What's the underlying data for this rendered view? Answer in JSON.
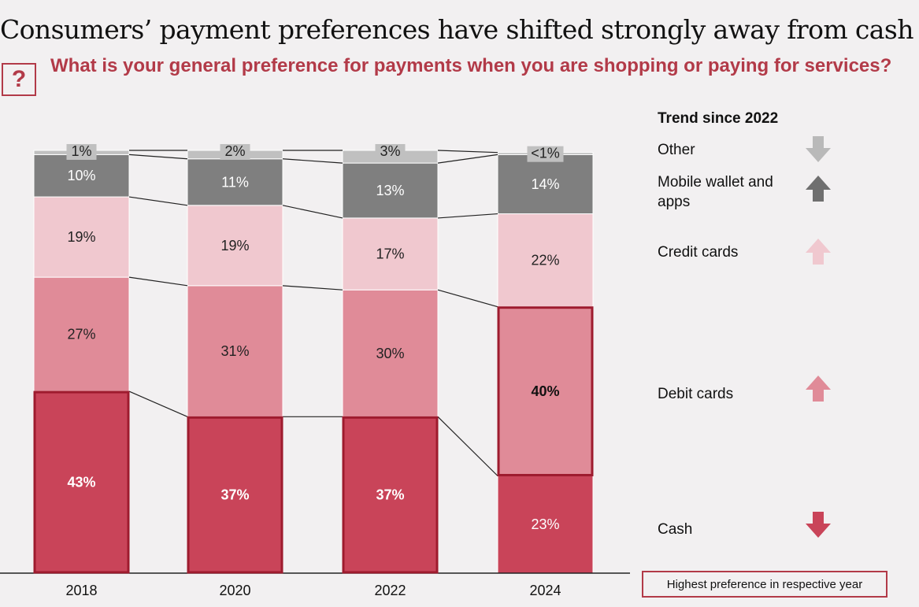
{
  "title": "Consumers’ payment preferences have shifted strongly away from cash",
  "question_icon": "?",
  "question": "What is your general preference for payments when you are shopping or paying for services?",
  "legend": {
    "title": "Trend since 2022",
    "items": [
      {
        "label": "Other",
        "trend": "down",
        "color": "#b9b9b9",
        "icon": "arrow-down-icon"
      },
      {
        "label": "Mobile wallet and apps",
        "trend": "up",
        "color": "#6f6f6f",
        "icon": "arrow-up-icon"
      },
      {
        "label": "Credit cards",
        "trend": "up",
        "color": "#f0c8cf",
        "icon": "arrow-up-icon"
      },
      {
        "label": "Debit cards",
        "trend": "up",
        "color": "#e08b98",
        "icon": "arrow-up-icon"
      },
      {
        "label": "Cash",
        "trend": "down",
        "color": "#c94459",
        "icon": "arrow-down-icon"
      }
    ]
  },
  "note": "Highest preference in respective year",
  "chart_data": {
    "type": "bar",
    "stacked": true,
    "categories": [
      "2018",
      "2020",
      "2022",
      "2024"
    ],
    "series": [
      {
        "name": "Cash",
        "values": [
          43,
          37,
          37,
          23
        ],
        "labels": [
          "43%",
          "37%",
          "37%",
          "23%"
        ],
        "color": "#c94459",
        "text_color": "#ffffff"
      },
      {
        "name": "Debit cards",
        "values": [
          27,
          31,
          30,
          40
        ],
        "labels": [
          "27%",
          "31%",
          "30%",
          "40%"
        ],
        "color": "#e08b98",
        "text_color": "#222222"
      },
      {
        "name": "Credit cards",
        "values": [
          19,
          19,
          17,
          22
        ],
        "labels": [
          "19%",
          "19%",
          "17%",
          "22%"
        ],
        "color": "#f0c8cf",
        "text_color": "#222222"
      },
      {
        "name": "Mobile wallet and apps",
        "values": [
          10,
          11,
          13,
          14
        ],
        "labels": [
          "10%",
          "11%",
          "13%",
          "14%"
        ],
        "color": "#7f7f7f",
        "text_color": "#ffffff"
      },
      {
        "name": "Other",
        "values": [
          1,
          2,
          3,
          0.5
        ],
        "labels": [
          "1%",
          "2%",
          "3%",
          "<1%"
        ],
        "color": "#c0c0c0",
        "text_color": "#222222"
      }
    ],
    "highlight": [
      {
        "category": "2018",
        "series": "Cash"
      },
      {
        "category": "2020",
        "series": "Cash"
      },
      {
        "category": "2022",
        "series": "Cash"
      },
      {
        "category": "2024",
        "series": "Debit cards"
      }
    ],
    "highlight_color": "#9e1b2e"
  }
}
